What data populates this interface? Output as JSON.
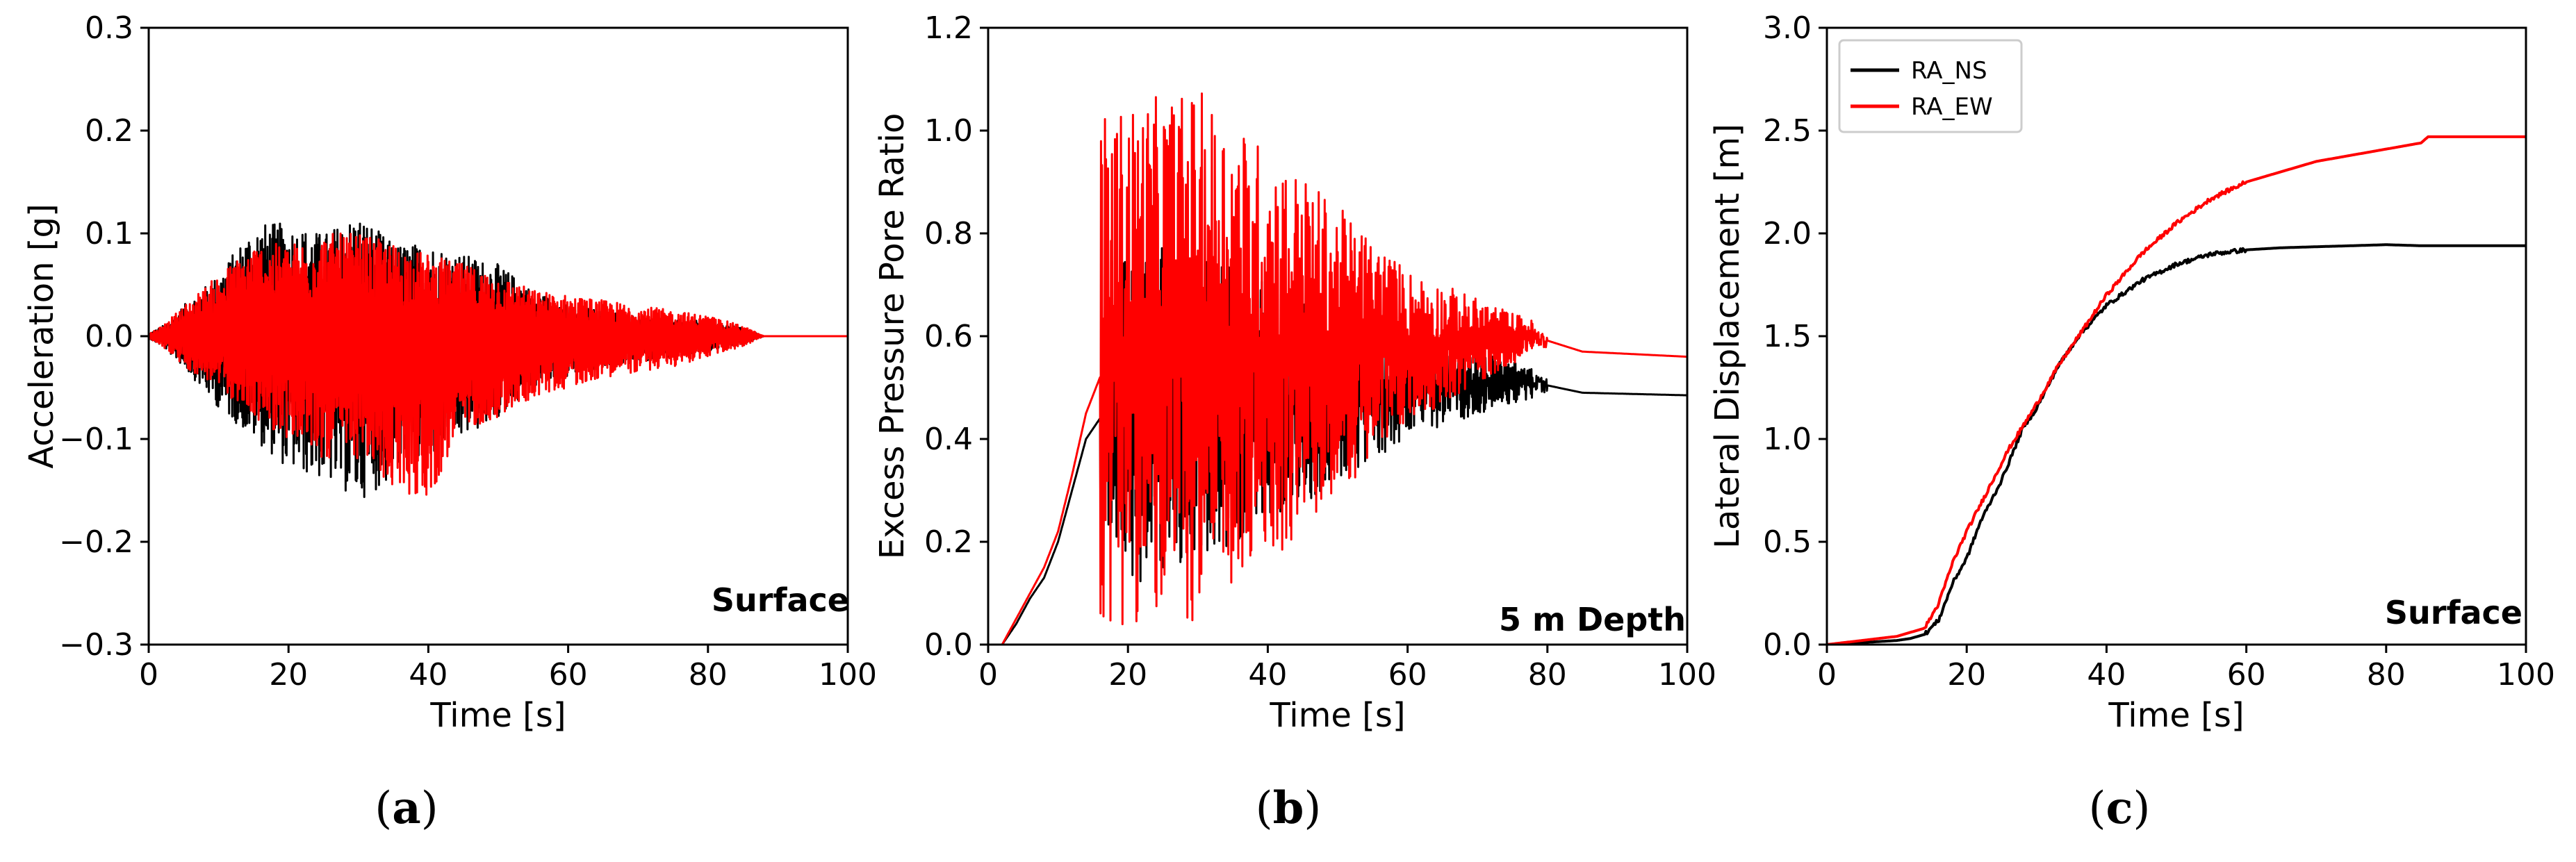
{
  "colors": {
    "ns": "#000000",
    "ew": "#ff0000",
    "axis": "#000000"
  },
  "chart_data": [
    {
      "type": "line",
      "panel": "a",
      "caption_letter": "a",
      "annotation": "Surface",
      "xlabel": "Time [s]",
      "ylabel": "Acceleration [g]",
      "xlim": [
        0,
        100
      ],
      "ylim": [
        -0.3,
        0.3
      ],
      "xticks": [
        0,
        20,
        40,
        60,
        80,
        100
      ],
      "yticks": [
        -0.3,
        -0.2,
        -0.1,
        0.0,
        0.1,
        0.2,
        0.3
      ],
      "ytick_labels": [
        "−0.3",
        "−0.2",
        "−0.1",
        "0.0",
        "0.1",
        "0.2",
        "0.3"
      ],
      "xtick_labels": [
        "0",
        "20",
        "40",
        "60",
        "80",
        "100"
      ],
      "series": [
        {
          "name": "RA_NS",
          "color": "#000000",
          "envelope_x": [
            0,
            2,
            5,
            10,
            15,
            20,
            25,
            30,
            35,
            40,
            45,
            50,
            55,
            60,
            65,
            70,
            75,
            80,
            85,
            88,
            100
          ],
          "envelope_max": [
            0.002,
            0.01,
            0.03,
            0.06,
            0.11,
            0.11,
            0.1,
            0.12,
            0.09,
            0.09,
            0.08,
            0.07,
            0.045,
            0.03,
            0.025,
            0.02,
            0.015,
            0.015,
            0.008,
            0.0,
            0.0
          ],
          "envelope_min": [
            -0.002,
            -0.01,
            -0.03,
            -0.07,
            -0.1,
            -0.13,
            -0.14,
            -0.16,
            -0.14,
            -0.12,
            -0.1,
            -0.08,
            -0.05,
            -0.04,
            -0.03,
            -0.025,
            -0.02,
            -0.015,
            -0.008,
            0.0,
            0.0
          ]
        },
        {
          "name": "RA_EW",
          "color": "#ff0000",
          "envelope_x": [
            0,
            2,
            5,
            10,
            15,
            20,
            25,
            30,
            35,
            40,
            45,
            50,
            55,
            60,
            65,
            70,
            75,
            80,
            85,
            88,
            100
          ],
          "envelope_max": [
            0.002,
            0.01,
            0.03,
            0.06,
            0.09,
            0.09,
            0.1,
            0.1,
            0.09,
            0.08,
            0.07,
            0.06,
            0.045,
            0.04,
            0.035,
            0.03,
            0.025,
            0.02,
            0.01,
            0.0,
            0.0
          ],
          "envelope_min": [
            -0.002,
            -0.01,
            -0.03,
            -0.05,
            -0.08,
            -0.1,
            -0.12,
            -0.12,
            -0.15,
            -0.16,
            -0.09,
            -0.08,
            -0.06,
            -0.05,
            -0.04,
            -0.035,
            -0.03,
            -0.02,
            -0.01,
            0.0,
            0.0
          ]
        }
      ]
    },
    {
      "type": "line",
      "panel": "b",
      "caption_letter": "b",
      "annotation": "5 m Depth",
      "xlabel": "Time [s]",
      "ylabel": "Excess Pressure Pore Ratio",
      "xlim": [
        0,
        100
      ],
      "ylim": [
        0,
        1.2
      ],
      "xticks": [
        0,
        20,
        40,
        60,
        80,
        100
      ],
      "yticks": [
        0.0,
        0.2,
        0.4,
        0.6,
        0.8,
        1.0,
        1.2
      ],
      "ytick_labels": [
        "0.0",
        "0.2",
        "0.4",
        "0.6",
        "0.8",
        "1.0",
        "1.2"
      ],
      "xtick_labels": [
        "0",
        "20",
        "40",
        "60",
        "80",
        "100"
      ],
      "series": [
        {
          "name": "RA_NS",
          "color": "#000000",
          "trend_x": [
            0,
            2,
            4,
            6,
            8,
            10,
            12,
            14,
            16,
            20,
            30,
            40,
            50,
            60,
            70,
            78,
            85,
            100
          ],
          "trend_y": [
            0.0,
            0.0,
            0.04,
            0.09,
            0.13,
            0.2,
            0.3,
            0.4,
            0.44,
            0.45,
            0.46,
            0.47,
            0.48,
            0.5,
            0.51,
            0.51,
            0.49,
            0.485
          ],
          "osc_start": 16,
          "osc_end": 78,
          "osc_amp": [
            0.35,
            0.3,
            0.2,
            0.1,
            0.03
          ]
        },
        {
          "name": "RA_EW",
          "color": "#ff0000",
          "trend_x": [
            0,
            2,
            4,
            6,
            8,
            10,
            12,
            14,
            16,
            20,
            30,
            40,
            50,
            60,
            70,
            78,
            85,
            100
          ],
          "trend_y": [
            0.0,
            0.0,
            0.05,
            0.1,
            0.15,
            0.22,
            0.33,
            0.45,
            0.52,
            0.55,
            0.56,
            0.56,
            0.57,
            0.58,
            0.59,
            0.6,
            0.57,
            0.56
          ],
          "osc_start": 16,
          "osc_end": 78,
          "osc_amp": [
            0.5,
            0.52,
            0.35,
            0.15,
            0.03
          ]
        }
      ]
    },
    {
      "type": "line",
      "panel": "c",
      "caption_letter": "c",
      "annotation": "Surface",
      "xlabel": "Time [s]",
      "ylabel": "Lateral Displacement [m]",
      "xlim": [
        0,
        100
      ],
      "ylim": [
        0,
        3.0
      ],
      "xticks": [
        0,
        20,
        40,
        60,
        80,
        100
      ],
      "yticks": [
        0.0,
        0.5,
        1.0,
        1.5,
        2.0,
        2.5,
        3.0
      ],
      "ytick_labels": [
        "0.0",
        "0.5",
        "1.0",
        "1.5",
        "2.0",
        "2.5",
        "3.0"
      ],
      "xtick_labels": [
        "0",
        "20",
        "40",
        "60",
        "80",
        "100"
      ],
      "legend": {
        "position": "top-left",
        "entries": [
          "RA_NS",
          "RA_EW"
        ]
      },
      "series": [
        {
          "name": "RA_NS",
          "color": "#000000",
          "x": [
            0,
            5,
            10,
            12,
            14,
            16,
            18,
            20,
            22,
            25,
            28,
            30,
            33,
            36,
            40,
            45,
            50,
            55,
            60,
            65,
            70,
            75,
            80,
            85,
            90,
            100
          ],
          "y": [
            0.0,
            0.01,
            0.02,
            0.03,
            0.05,
            0.12,
            0.3,
            0.42,
            0.6,
            0.8,
            1.05,
            1.15,
            1.35,
            1.5,
            1.65,
            1.77,
            1.85,
            1.9,
            1.92,
            1.93,
            1.935,
            1.94,
            1.945,
            1.94,
            1.94,
            1.94
          ]
        },
        {
          "name": "RA_EW",
          "color": "#ff0000",
          "x": [
            0,
            5,
            10,
            14,
            16,
            18,
            20,
            23,
            26,
            30,
            33,
            36,
            40,
            45,
            50,
            55,
            60,
            65,
            70,
            75,
            80,
            85,
            86,
            90,
            100
          ],
          "y": [
            0.0,
            0.02,
            0.04,
            0.08,
            0.2,
            0.4,
            0.55,
            0.75,
            0.95,
            1.17,
            1.35,
            1.5,
            1.7,
            1.9,
            2.05,
            2.17,
            2.25,
            2.3,
            2.35,
            2.38,
            2.41,
            2.44,
            2.47,
            2.47,
            2.47
          ]
        }
      ]
    }
  ]
}
